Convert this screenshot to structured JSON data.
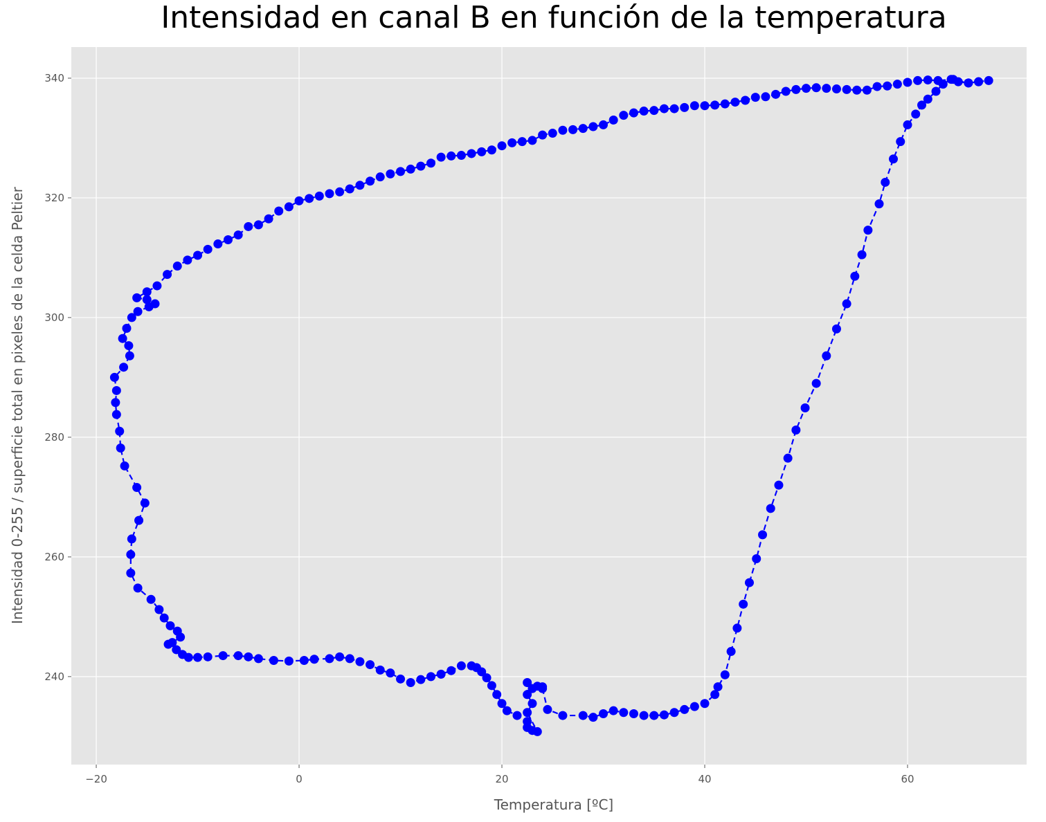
{
  "chart_data": {
    "type": "line",
    "title": "Intensidad en canal B en función de la temperatura",
    "xlabel": "Temperatura [ºC]",
    "ylabel": "Intensidad 0-255 / superficie total en pixeles de la celda Peltier",
    "color": "#0000ff",
    "linestyle": "dashed",
    "marker": "o",
    "grid": true,
    "xlim": [
      -22.46,
      71.74
    ],
    "ylim": [
      225.3,
      345.2
    ],
    "xticks": [
      {
        "value": -20,
        "label": "−20"
      },
      0,
      20,
      40,
      60
    ],
    "yticks": [
      240,
      260,
      280,
      300,
      320,
      340
    ],
    "x": [
      24,
      24.5,
      26,
      28,
      29,
      30,
      31,
      32,
      33,
      34,
      35,
      36,
      37,
      38,
      39,
      40,
      41,
      41.3,
      42,
      42.6,
      43.2,
      43.8,
      44.4,
      45.1,
      45.7,
      46.5,
      47.3,
      48.2,
      49,
      49.9,
      51,
      52,
      53,
      54,
      54.8,
      55.5,
      56.1,
      57.2,
      57.8,
      58.6,
      59.3,
      60,
      60.8,
      61.4,
      62,
      62.8,
      63.5,
      64.3,
      65,
      66,
      67,
      68,
      67,
      66,
      64.5,
      63,
      62,
      61,
      60,
      59,
      58,
      57,
      56,
      55,
      54,
      53,
      52,
      51,
      50,
      49,
      48,
      47,
      46,
      45,
      44,
      43,
      42,
      41,
      40,
      39,
      38,
      37,
      36,
      35,
      34,
      33,
      32,
      31,
      30,
      29,
      28,
      27,
      26,
      25,
      24,
      23,
      22,
      21,
      20,
      19,
      18,
      17,
      16,
      15,
      14,
      13,
      12,
      11,
      10,
      9,
      8,
      7,
      6,
      5,
      4,
      3,
      2,
      1,
      0,
      -1,
      -2,
      -3,
      -4,
      -5,
      -6,
      -7,
      -8,
      -9,
      -10,
      -11,
      -12,
      -13,
      -14,
      -15,
      -16,
      -15,
      -14.2,
      -14.8,
      -15.9,
      -16.5,
      -17,
      -17.4,
      -16.8,
      -16.7,
      -17.3,
      -18.2,
      -18,
      -18.1,
      -18,
      -17.7,
      -17.6,
      -17.2,
      -16,
      -15.2,
      -15.8,
      -16.5,
      -16.6,
      -16.6,
      -15.9,
      -14.6,
      -13.8,
      -13.3,
      -12.7,
      -12,
      -11.7,
      -12.5,
      -12.9,
      -12.1,
      -11.5,
      -10.9,
      -10,
      -9,
      -7.5,
      -6,
      -5,
      -4,
      -2.5,
      -1,
      0.5,
      1.5,
      3,
      4,
      5,
      6,
      7,
      8,
      9,
      10,
      11,
      12,
      13,
      14,
      15,
      16,
      17,
      17.5,
      18,
      18.5,
      19,
      19.5,
      20,
      20.5,
      21.5,
      22.5,
      22.5,
      23,
      23.5,
      22.5,
      23,
      22.5,
      22.5,
      23,
      23.5,
      24
    ],
    "values": [
      238,
      234.5,
      233.5,
      233.5,
      233.2,
      233.8,
      234.3,
      234,
      233.8,
      233.5,
      233.5,
      233.6,
      234,
      234.5,
      235,
      235.5,
      237,
      238.3,
      240.3,
      244.2,
      248.1,
      252.1,
      255.7,
      259.7,
      263.7,
      268.1,
      272,
      276.5,
      281.2,
      284.9,
      289,
      293.6,
      298.1,
      302.3,
      306.9,
      310.5,
      314.6,
      319,
      322.6,
      326.5,
      329.4,
      332.2,
      334,
      335.5,
      336.5,
      337.8,
      339,
      339.8,
      339.4,
      339.2,
      339.4,
      339.6,
      339.4,
      339.2,
      339.8,
      339.6,
      339.7,
      339.6,
      339.3,
      339,
      338.7,
      338.6,
      338,
      338,
      338.1,
      338.2,
      338.3,
      338.4,
      338.3,
      338.1,
      337.8,
      337.3,
      336.9,
      336.8,
      336.3,
      336,
      335.7,
      335.5,
      335.4,
      335.4,
      335.1,
      334.9,
      334.9,
      334.6,
      334.5,
      334.2,
      333.8,
      333,
      332.2,
      331.9,
      331.6,
      331.4,
      331.3,
      330.8,
      330.5,
      329.6,
      329.4,
      329.2,
      328.7,
      328,
      327.7,
      327.4,
      327.1,
      327,
      326.8,
      325.8,
      325.3,
      324.8,
      324.4,
      324,
      323.5,
      322.8,
      322.1,
      321.5,
      321,
      320.7,
      320.3,
      319.9,
      319.5,
      318.5,
      317.8,
      316.5,
      315.5,
      315.2,
      313.8,
      313,
      312.3,
      311.4,
      310.4,
      309.6,
      308.6,
      307.2,
      305.3,
      304.3,
      303.3,
      303,
      302.3,
      301.8,
      301,
      300,
      298.2,
      296.5,
      295.3,
      293.6,
      291.7,
      290,
      287.8,
      285.8,
      283.8,
      281,
      278.2,
      275.2,
      271.6,
      269,
      266.1,
      263,
      260.4,
      257.3,
      254.8,
      252.9,
      251.2,
      249.8,
      248.5,
      247.6,
      246.6,
      245.7,
      245.4,
      244.5,
      243.7,
      243.2,
      243.2,
      243.3,
      243.5,
      243.5,
      243.3,
      243,
      242.7,
      242.6,
      242.7,
      242.9,
      243,
      243.3,
      243,
      242.5,
      242,
      241.1,
      240.6,
      239.6,
      239,
      239.5,
      240,
      240.4,
      241,
      241.8,
      241.8,
      241.5,
      240.8,
      239.8,
      238.5,
      237,
      235.5,
      234.3,
      233.5,
      232.5,
      231.5,
      231,
      230.8,
      234,
      235.5,
      237,
      239,
      238,
      238.4,
      238.3
    ]
  }
}
